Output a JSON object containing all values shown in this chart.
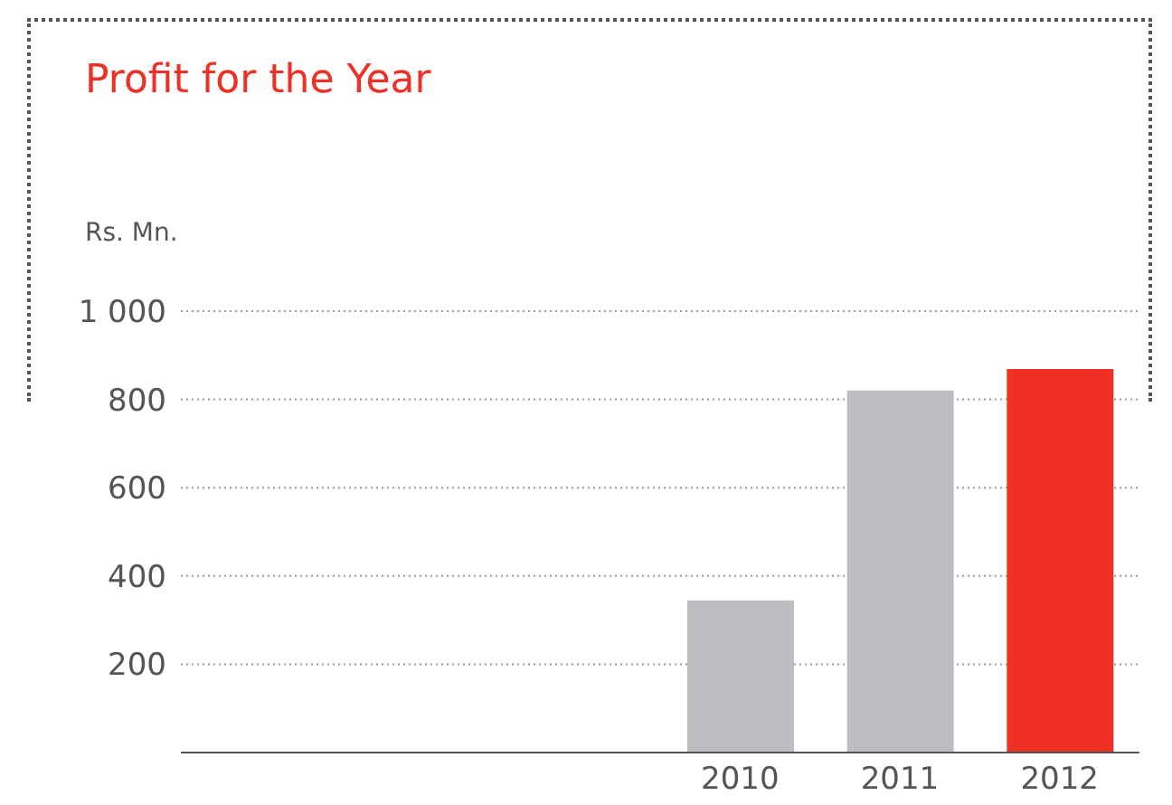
{
  "chart_data": {
    "type": "bar",
    "title": "Profit for the Year",
    "ylabel": "Rs. Mn.",
    "categories": [
      null,
      null,
      null,
      "2010",
      "2011",
      "2012"
    ],
    "values": [
      null,
      null,
      null,
      345,
      820,
      869
    ],
    "colors": [
      "#bcbdc1",
      "#bcbdc1",
      "#bcbdc1",
      "#bcbdc1",
      "#bcbdc1",
      "#ee3124"
    ],
    "ylim": [
      0,
      1000
    ],
    "yticks": [
      200,
      400,
      600,
      800,
      {
        "value": 1000,
        "label": "1 000"
      }
    ],
    "grid": "y"
  }
}
